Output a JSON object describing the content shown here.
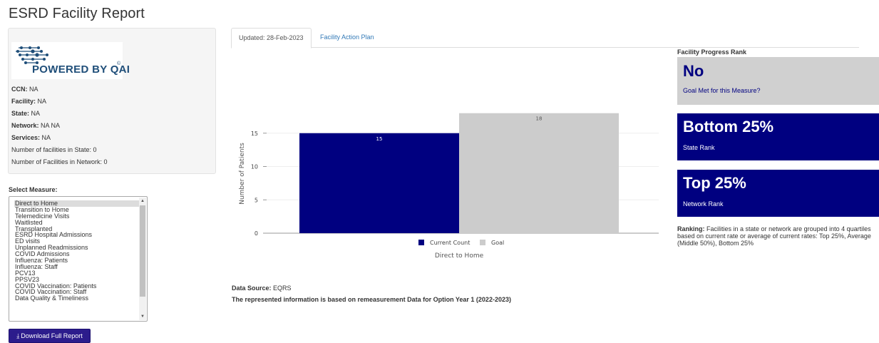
{
  "page": {
    "title": "ESRD Facility Report"
  },
  "logo": {
    "text": "POWERED BY QAI",
    "copyright": "©"
  },
  "facility_info": {
    "ccn": {
      "label": "CCN:",
      "value": "NA"
    },
    "facility": {
      "label": "Facility:",
      "value": "NA"
    },
    "state": {
      "label": "State:",
      "value": "NA"
    },
    "network": {
      "label": "Network:",
      "value": "NA NA"
    },
    "services": {
      "label": "Services:",
      "value": "NA"
    },
    "facilities_in_state": "Number of facilities in State: 0",
    "facilities_in_network": "Number of Facilities in Network: 0"
  },
  "measure_select": {
    "label": "Select Measure:",
    "selected": "Direct to Home",
    "options": [
      "Direct to Home",
      "Transition to Home",
      "Telemedicine Visits",
      "Waitlisted",
      "Transplanted",
      "ESRD Hospital Admissions",
      "ED visits",
      "Unplanned Readmissions",
      "COVID Admissions",
      "Influenza: Patients",
      "Influenza: Staff",
      "PCV13",
      "PPSV23",
      "COVID Vaccination: Patients",
      "COVID Vaccination: Staff",
      "Data Quality & Timeliness"
    ]
  },
  "download_button": {
    "label": "Download Full Report",
    "icon": "download-icon"
  },
  "tabs": [
    {
      "label": "Updated: 28-Feb-2023",
      "active": true
    },
    {
      "label": "Facility Action Plan",
      "active": false
    }
  ],
  "chart_data": {
    "type": "bar",
    "categories": [
      "Direct to Home"
    ],
    "series": [
      {
        "name": "Current Count",
        "values": [
          15
        ],
        "color": "#000080"
      },
      {
        "name": "Goal",
        "values": [
          18
        ],
        "color": "#cccccc"
      }
    ],
    "xlabel": "Direct to Home",
    "ylabel": "Number of Patients",
    "ylim": [
      0,
      20
    ],
    "yticks": [
      0,
      5,
      10,
      15
    ],
    "grid": true,
    "legend": "bottom"
  },
  "data_source": {
    "label": "Data Source:",
    "value": "EQRS"
  },
  "remeasurement_note": "The represented information is based on remeasurement Data for Option Year 1 (2022-2023)",
  "progress_rank": {
    "title": "Facility Progress Rank",
    "goal": {
      "value": "No",
      "label": "Goal Met for this Measure?",
      "color": "#d0d0d0"
    },
    "state": {
      "value": "Bottom 25%",
      "label": "State Rank",
      "color": "#000080"
    },
    "network": {
      "value": "Top 25%",
      "label": "Network Rank",
      "color": "#000080"
    }
  },
  "ranking_note": {
    "label": "Ranking:",
    "text": "Facilities in a state or network are grouped into 4 quartiles based on current rate or average of current rates: Top 25%, Average (Middle 50%), Bottom 25%"
  }
}
